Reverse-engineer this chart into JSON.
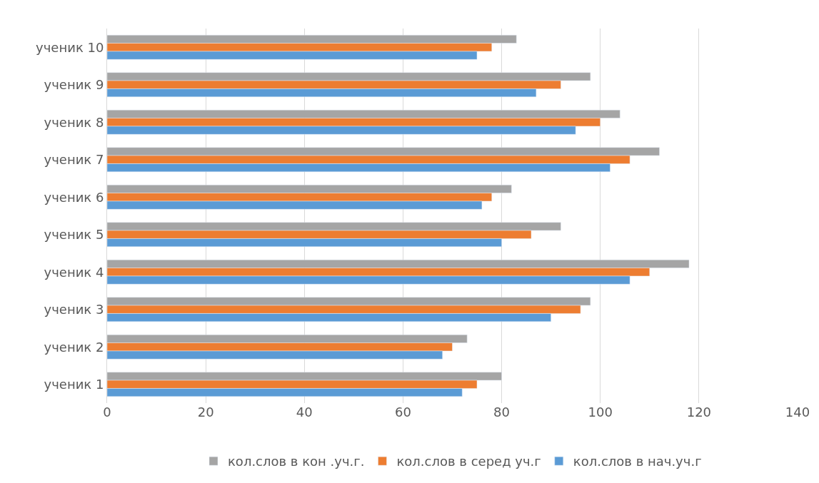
{
  "chart_data": {
    "type": "bar",
    "orientation": "horizontal",
    "categories": [
      "ученик 10",
      "ученик 9",
      "ученик 8",
      "ученик 7",
      "ученик 6",
      "ученик 5",
      "ученик 4",
      "ученик 3",
      "ученик 2",
      "ученик 1"
    ],
    "series": [
      {
        "name": "кол.слов в кон .уч.г.",
        "color": "#a5a5a5",
        "values": [
          83,
          98,
          104,
          112,
          82,
          92,
          118,
          98,
          73,
          80
        ]
      },
      {
        "name": "кол.слов в серед уч.г",
        "color": "#ed7d31",
        "values": [
          78,
          92,
          100,
          106,
          78,
          86,
          110,
          96,
          70,
          75
        ]
      },
      {
        "name": "кол.слов в нач.уч.г",
        "color": "#5b9bd5",
        "values": [
          75,
          87,
          95,
          102,
          76,
          80,
          106,
          90,
          68,
          72
        ]
      }
    ],
    "xlim": [
      0,
      140
    ],
    "xticks": [
      0,
      20,
      40,
      60,
      80,
      100,
      120,
      140
    ],
    "grid": "x",
    "legend": "bottom"
  }
}
